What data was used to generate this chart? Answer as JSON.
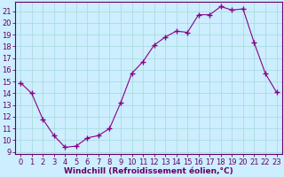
{
  "x": [
    0,
    1,
    2,
    3,
    4,
    5,
    6,
    7,
    8,
    9,
    10,
    11,
    12,
    13,
    14,
    15,
    16,
    17,
    18,
    19,
    20,
    21,
    22,
    23
  ],
  "y": [
    14.9,
    14.0,
    11.8,
    10.4,
    9.4,
    9.5,
    10.2,
    10.4,
    11.0,
    13.2,
    15.7,
    16.7,
    18.1,
    18.8,
    19.3,
    19.2,
    20.7,
    20.7,
    21.4,
    21.1,
    21.2,
    18.3,
    15.7,
    14.1
  ],
  "line_color": "#880088",
  "marker": "+",
  "marker_size": 4,
  "marker_lw": 1.0,
  "bg_color": "#cceeff",
  "grid_color": "#aadddd",
  "axis_color": "#660066",
  "xlabel": "Windchill (Refroidissement éolien,°C)",
  "xlabel_fontsize": 6.5,
  "tick_fontsize": 6,
  "ylim": [
    8.8,
    21.8
  ],
  "xlim": [
    -0.5,
    23.5
  ],
  "yticks": [
    9,
    10,
    11,
    12,
    13,
    14,
    15,
    16,
    17,
    18,
    19,
    20,
    21
  ],
  "xticks": [
    0,
    1,
    2,
    3,
    4,
    5,
    6,
    7,
    8,
    9,
    10,
    11,
    12,
    13,
    14,
    15,
    16,
    17,
    18,
    19,
    20,
    21,
    22,
    23
  ]
}
